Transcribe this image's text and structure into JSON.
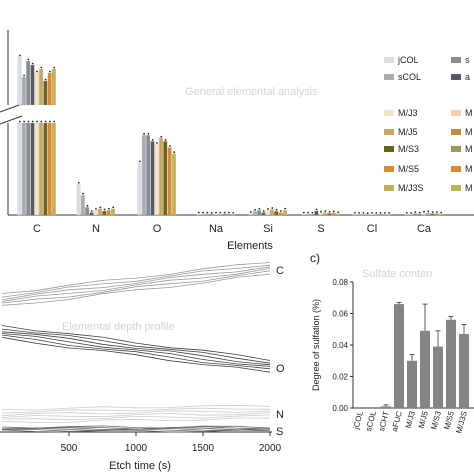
{
  "top_panel": {
    "watermark": "General elemental analysis",
    "xlabel": "Elements",
    "legend_col1": [
      "jCOL",
      "sCOL",
      "M/J3",
      "M/J5",
      "M/S3",
      "M/S5",
      "M/J3S"
    ],
    "legend_col2": [
      "s",
      "a",
      "M",
      "M",
      "M",
      "M",
      "M"
    ]
  },
  "panel_b": {
    "watermark": "Elemental depth profile",
    "xlabel": "Etch time (s)"
  },
  "panel_c": {
    "letter": "c)",
    "watermark": "Sulfate conten",
    "ylabel": "Degree of sulfation (%)"
  },
  "colors": {
    "jCOL": "#d9dde3",
    "sCOL": "#a7adb5",
    "sCHT": "#868c93",
    "aFUC": "#555a60",
    "M/J3": "#f4e2c6",
    "M/J5": "#c8a95a",
    "M/S3": "#6e6214",
    "M/S5": "#e0892c",
    "M/J3S": "#bfb25a",
    "extra1": "#f2cfb1",
    "extra2": "#c28a3e",
    "extra3": "#9a9a5a",
    "depth_C": "#9a9a9a",
    "depth_O": "#404040",
    "depth_N": "#cccccc",
    "depth_S": "#6a6a6a",
    "bar_c": "#858585"
  },
  "chart_data": [
    {
      "type": "bar",
      "categories": [
        "C",
        "N",
        "O",
        "Na",
        "Si",
        "S",
        "Cl",
        "Ca"
      ],
      "series_colors": [
        "jCOL",
        "sCOL",
        "sCHT",
        "aFUC",
        "M/J3",
        "M/J5",
        "M/S3",
        "M/S5",
        "M/J3S",
        "extra1",
        "extra2",
        "extra3"
      ],
      "upper_values": [
        [
          52,
          47,
          51,
          50,
          48,
          49,
          46,
          48,
          49
        ],
        [
          0,
          0,
          0,
          0,
          0,
          0,
          0,
          0,
          0
        ],
        [
          0,
          0,
          0,
          0,
          0,
          0,
          0,
          0,
          0
        ]
      ],
      "values": [
        [
          65,
          61,
          65,
          64,
          62,
          63,
          60,
          62,
          63
        ],
        [
          10,
          6.5,
          2.5,
          0.8,
          1.5,
          2,
          1.3,
          1.6,
          2
        ],
        [
          17,
          26,
          26,
          24,
          23,
          25,
          24,
          22,
          20
        ],
        [
          0.3,
          0.3,
          0.3,
          0.2,
          0.3,
          0.3,
          0.3,
          0.3,
          0.2
        ],
        [
          0.5,
          1.2,
          1.5,
          0.8,
          1.5,
          1.8,
          1.2,
          0.8,
          1.6
        ],
        [
          0.3,
          0.3,
          0.2,
          1.3,
          0.6,
          0.8,
          0.5,
          0.7,
          0.4
        ],
        [
          0.2,
          0.2,
          0.2,
          0.1,
          0.2,
          0.2,
          0.2,
          0.2,
          0.2
        ],
        [
          0.2,
          0.2,
          0.5,
          0.3,
          0.6,
          0.7,
          0.4,
          0.5,
          0.3
        ]
      ],
      "ylim": [
        0,
        30
      ]
    },
    {
      "type": "line",
      "x": [
        0,
        250,
        500,
        750,
        1000,
        1250,
        1500,
        1750,
        2000
      ],
      "xticks": [
        500,
        1000,
        1500,
        2000
      ],
      "xlim": [
        0,
        2000
      ],
      "ylim": [
        0,
        100
      ],
      "series": [
        {
          "name": "C",
          "values": [
            60,
            62,
            64,
            66,
            68,
            70,
            72,
            74,
            76
          ]
        },
        {
          "name": "O",
          "values": [
            35,
            33,
            31,
            29,
            27,
            25,
            23,
            21,
            19
          ]
        },
        {
          "name": "N",
          "values": [
            3.5,
            3.6,
            3.7,
            3.8,
            3.9,
            4.0,
            4.0,
            4.1,
            4.2
          ]
        },
        {
          "name": "S",
          "values": [
            0.5,
            0.5,
            0.5,
            0.5,
            0.5,
            0.5,
            0.5,
            0.5,
            0.5
          ]
        }
      ]
    },
    {
      "type": "bar",
      "categories": [
        "jCOL",
        "sCOL",
        "sCHT",
        "aFUC",
        "M/J3",
        "M/J5",
        "M/S3",
        "M/S5",
        "M/J3S"
      ],
      "values": [
        0,
        0,
        0.001,
        0.066,
        0.03,
        0.049,
        0.039,
        0.056,
        0.047
      ],
      "errors": [
        0,
        0,
        0.001,
        0.001,
        0.004,
        0.017,
        0.01,
        0.002,
        0.006
      ],
      "yticks": [
        "0.00",
        "0.02",
        "0.04",
        "0.06",
        "0.08"
      ],
      "ylim": [
        0,
        0.08
      ]
    }
  ]
}
